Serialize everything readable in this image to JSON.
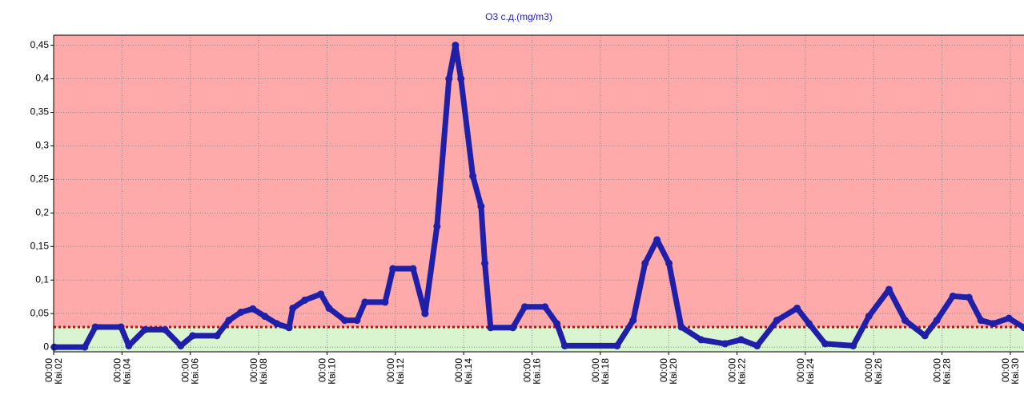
{
  "chart_data": {
    "type": "line",
    "title": "O3  с.д.(mg/m3)",
    "x": [
      2.02,
      2.91,
      3.22,
      3.97,
      4.2,
      4.67,
      5.26,
      5.72,
      6.07,
      6.78,
      7.13,
      7.48,
      7.83,
      8.18,
      8.53,
      8.89,
      9.0,
      9.35,
      9.82,
      10.06,
      10.52,
      10.88,
      11.11,
      11.7,
      11.93,
      12.52,
      12.87,
      13.22,
      13.57,
      13.76,
      13.92,
      14.27,
      14.51,
      14.62,
      14.79,
      15.44,
      15.79,
      16.38,
      16.73,
      16.96,
      18.49,
      18.96,
      19.31,
      19.66,
      20.01,
      20.37,
      20.95,
      21.65,
      22.12,
      22.59,
      23.17,
      23.76,
      24.11,
      24.58,
      25.4,
      25.86,
      26.45,
      26.92,
      27.5,
      27.85,
      28.32,
      28.79,
      29.14,
      29.49,
      29.96,
      30.4
    ],
    "series": [
      {
        "name": "O3",
        "color": "#1f1fa8",
        "values": [
          0,
          0,
          0.03,
          0.03,
          0.002,
          0.026,
          0.026,
          0.002,
          0.017,
          0.017,
          0.04,
          0.052,
          0.057,
          0.046,
          0.035,
          0.029,
          0.058,
          0.07,
          0.079,
          0.058,
          0.04,
          0.04,
          0.067,
          0.067,
          0.117,
          0.117,
          0.05,
          0.18,
          0.4,
          0.45,
          0.4,
          0.255,
          0.21,
          0.125,
          0.029,
          0.029,
          0.06,
          0.06,
          0.035,
          0.002,
          0.002,
          0.04,
          0.125,
          0.16,
          0.125,
          0.03,
          0.011,
          0.005,
          0.011,
          0.002,
          0.04,
          0.058,
          0.035,
          0.005,
          0.002,
          0.046,
          0.086,
          0.04,
          0.017,
          0.04,
          0.076,
          0.074,
          0.04,
          0.035,
          0.043,
          0.029
        ]
      }
    ],
    "threshold": 0.03,
    "threshold_color": "#e00000",
    "above_color": "#ffaaaa",
    "below_color": "#d9f5d0",
    "xlim": [
      2,
      30.4
    ],
    "ylim": [
      -0.007,
      0.465
    ],
    "xticks": [
      {
        "value": 2,
        "label": "00:00 Кві.02"
      },
      {
        "value": 4,
        "label": "00:00 Кві.04"
      },
      {
        "value": 6,
        "label": "00:00 Кві.06"
      },
      {
        "value": 8,
        "label": "00:00 Кві.08"
      },
      {
        "value": 10,
        "label": "00:00 Кві.10"
      },
      {
        "value": 12,
        "label": "00:00 Кві.12"
      },
      {
        "value": 14,
        "label": "00:00 Кві.14"
      },
      {
        "value": 16,
        "label": "00:00 Кві.16"
      },
      {
        "value": 18,
        "label": "00:00 Кві.18"
      },
      {
        "value": 20,
        "label": "00:00 Кві.20"
      },
      {
        "value": 22,
        "label": "00:00 Кві.22"
      },
      {
        "value": 24,
        "label": "00:00 Кві.24"
      },
      {
        "value": 26,
        "label": "00:00 Кві.26"
      },
      {
        "value": 28,
        "label": "00:00 Кві.28"
      },
      {
        "value": 30,
        "label": "00:00 Кві.30"
      }
    ],
    "yticks": [
      0,
      {
        "value": 0.05,
        "label": "0,05"
      },
      {
        "value": 0.1,
        "label": "0,1"
      },
      {
        "value": 0.15,
        "label": "0,15"
      },
      {
        "value": 0.2,
        "label": "0,2"
      },
      {
        "value": 0.25,
        "label": "0,25"
      },
      {
        "value": 0.3,
        "label": "0,3"
      },
      {
        "value": 0.35,
        "label": "0,35"
      },
      {
        "value": 0.4,
        "label": "0,4"
      },
      {
        "value": 0.45,
        "label": "0,45"
      }
    ],
    "grid": true
  }
}
